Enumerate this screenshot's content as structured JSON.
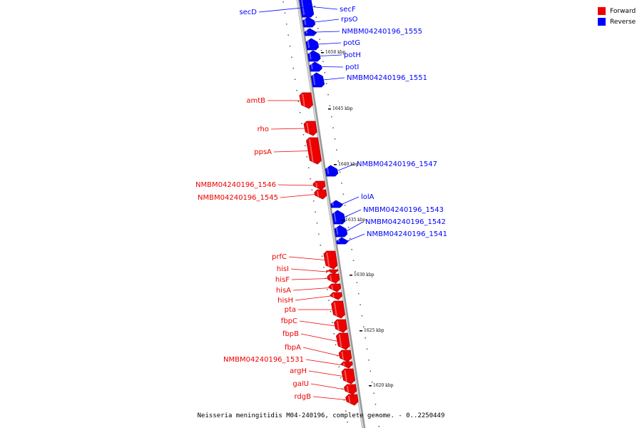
{
  "legend": {
    "forward_label": "Forward",
    "reverse_label": "Reverse",
    "forward_color": "#ee0000",
    "reverse_color": "#0000ff"
  },
  "caption": "Neisseria meningitidis M04-240196, complete genome. - 0..2250449",
  "colors": {
    "forward": "#ee0000",
    "reverse": "#0000ff",
    "backbone": "#888888"
  },
  "genome": {
    "kbp_ticks": [
      "1650 kbp",
      "1645 kbp",
      "1640 kbp",
      "1635 kbp",
      "1630 kbp",
      "1625 kbp",
      "1620 kbp"
    ]
  },
  "genes": [
    {
      "name": "secD",
      "strand": "reverse"
    },
    {
      "name": "secF",
      "strand": "reverse"
    },
    {
      "name": "rpsO",
      "strand": "reverse"
    },
    {
      "name": "NMBM04240196_1555",
      "strand": "reverse"
    },
    {
      "name": "potG",
      "strand": "reverse"
    },
    {
      "name": "potH",
      "strand": "reverse"
    },
    {
      "name": "potI",
      "strand": "reverse"
    },
    {
      "name": "NMBM04240196_1551",
      "strand": "reverse"
    },
    {
      "name": "amtB",
      "strand": "forward"
    },
    {
      "name": "rho",
      "strand": "forward"
    },
    {
      "name": "ppsA",
      "strand": "forward"
    },
    {
      "name": "NMBM04240196_1547",
      "strand": "reverse"
    },
    {
      "name": "NMBM04240196_1546",
      "strand": "forward"
    },
    {
      "name": "NMBM04240196_1545",
      "strand": "forward"
    },
    {
      "name": "lolA",
      "strand": "reverse"
    },
    {
      "name": "NMBM04240196_1543",
      "strand": "reverse"
    },
    {
      "name": "NMBM04240196_1542",
      "strand": "reverse"
    },
    {
      "name": "NMBM04240196_1541",
      "strand": "reverse"
    },
    {
      "name": "prfC",
      "strand": "forward"
    },
    {
      "name": "hisI",
      "strand": "forward"
    },
    {
      "name": "hisF",
      "strand": "forward"
    },
    {
      "name": "hisA",
      "strand": "forward"
    },
    {
      "name": "hisH",
      "strand": "forward"
    },
    {
      "name": "pta",
      "strand": "forward"
    },
    {
      "name": "fbpC",
      "strand": "forward"
    },
    {
      "name": "fbpB",
      "strand": "forward"
    },
    {
      "name": "fbpA",
      "strand": "forward"
    },
    {
      "name": "NMBM04240196_1531",
      "strand": "forward"
    },
    {
      "name": "argH",
      "strand": "forward"
    },
    {
      "name": "galU",
      "strand": "forward"
    },
    {
      "name": "rdgB",
      "strand": "forward"
    }
  ]
}
